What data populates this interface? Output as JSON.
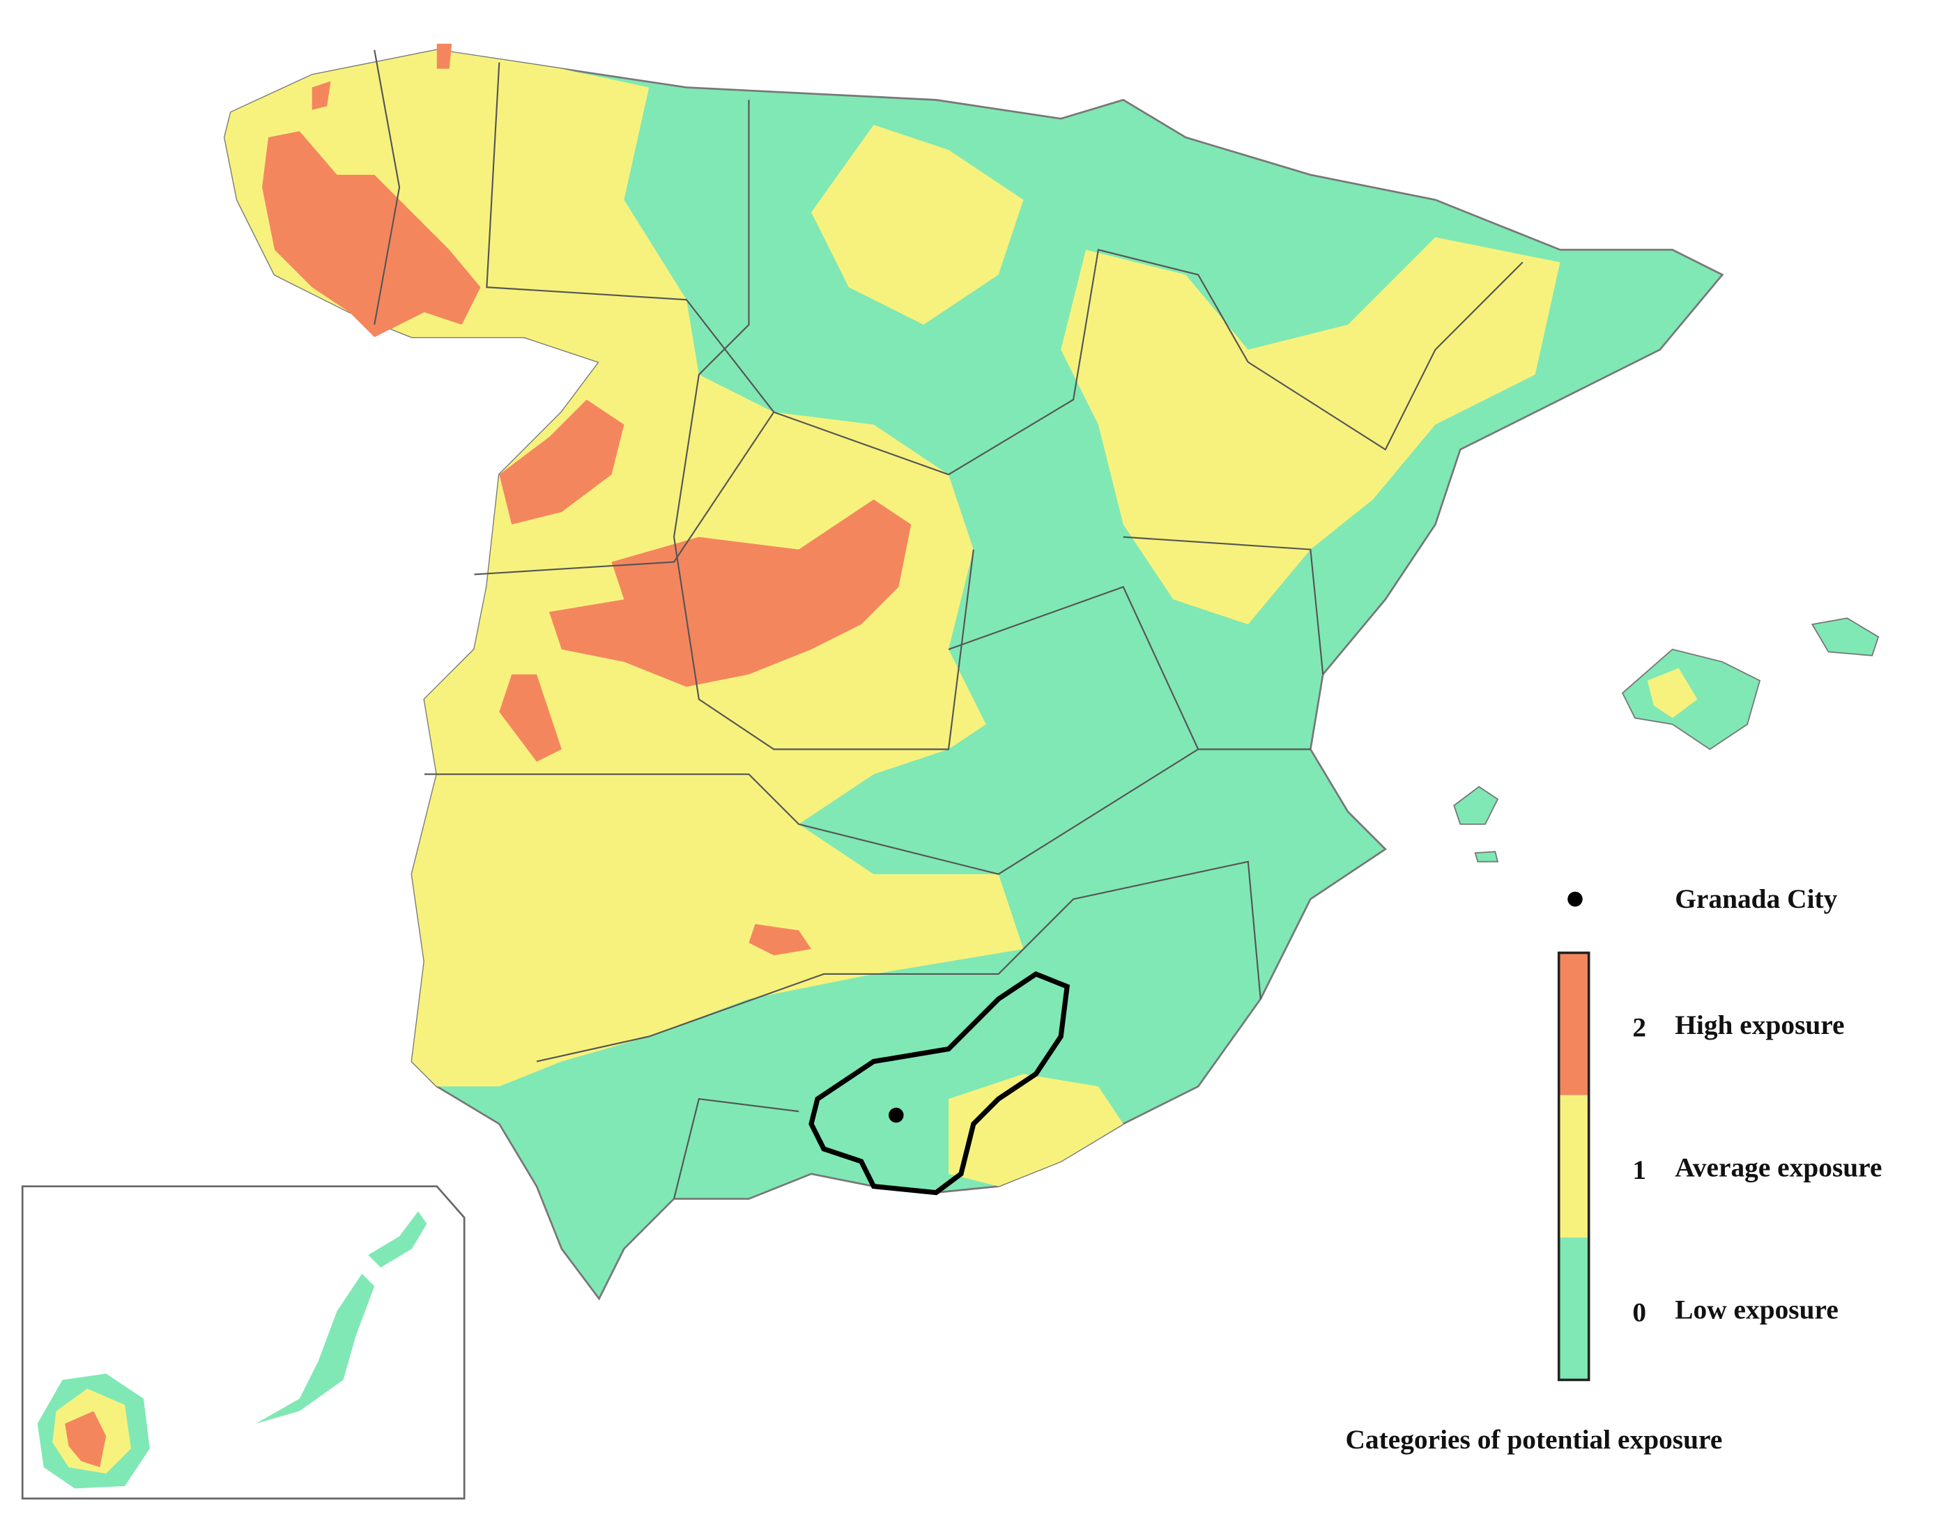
{
  "legend": {
    "point_label": "Granada City",
    "items": [
      {
        "value": 2,
        "label": "High exposure",
        "color": "#f4865e"
      },
      {
        "value": 1,
        "label": "Average exposure",
        "color": "#f7f27e"
      },
      {
        "value": 0,
        "label": "Low exposure",
        "color": "#80e8b4"
      }
    ],
    "title": "Categories of potential exposure"
  }
}
